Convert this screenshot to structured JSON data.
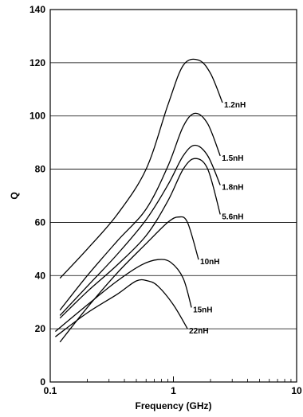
{
  "chart_data": {
    "type": "line",
    "title": "",
    "xlabel": "Frequency (GHz)",
    "ylabel": "Q",
    "x_scale": "log",
    "xlim": [
      0.1,
      10
    ],
    "ylim": [
      0,
      140
    ],
    "x_ticks": [
      {
        "value": 0.1,
        "label": "0.1"
      },
      {
        "value": 1,
        "label": "1"
      },
      {
        "value": 10,
        "label": "10"
      }
    ],
    "y_ticks": [
      {
        "value": 0,
        "label": "0"
      },
      {
        "value": 20,
        "label": "20"
      },
      {
        "value": 40,
        "label": "40"
      },
      {
        "value": 60,
        "label": "60"
      },
      {
        "value": 80,
        "label": "80"
      },
      {
        "value": 100,
        "label": "100"
      },
      {
        "value": 120,
        "label": "120"
      },
      {
        "value": 140,
        "label": "140"
      }
    ],
    "grid": "horizontal",
    "legend": "inline labels at line ends",
    "series": [
      {
        "name": "1.2nH",
        "x": [
          0.12,
          0.2,
          0.35,
          0.6,
          0.9,
          1.2,
          1.6,
          2.0,
          2.5
        ],
        "y": [
          39,
          50,
          63,
          80,
          104,
          119,
          121,
          116,
          105
        ]
      },
      {
        "name": "1.5nH",
        "x": [
          0.12,
          0.2,
          0.35,
          0.6,
          0.9,
          1.2,
          1.5,
          1.9,
          2.4
        ],
        "y": [
          27,
          40,
          53,
          65,
          81,
          96,
          101,
          97,
          85
        ]
      },
      {
        "name": "1.8nH",
        "x": [
          0.12,
          0.2,
          0.35,
          0.6,
          0.9,
          1.2,
          1.5,
          1.9,
          2.4
        ],
        "y": [
          25,
          36,
          48,
          61,
          74,
          85,
          89,
          85,
          74
        ]
      },
      {
        "name": "5.6nH",
        "x": [
          0.12,
          0.2,
          0.35,
          0.6,
          0.9,
          1.2,
          1.5,
          1.9,
          2.4
        ],
        "y": [
          24,
          34,
          44,
          55,
          68,
          80,
          84,
          80,
          63
        ]
      },
      {
        "name": "10nH",
        "x": [
          0.12,
          0.2,
          0.35,
          0.6,
          0.9,
          1.1,
          1.3,
          1.6
        ],
        "y": [
          15,
          28,
          41,
          52,
          60,
          62,
          60,
          46
        ]
      },
      {
        "name": "15nH",
        "x": [
          0.11,
          0.2,
          0.35,
          0.55,
          0.75,
          0.95,
          1.2,
          1.4
        ],
        "y": [
          19,
          29,
          38,
          44,
          46,
          45,
          39,
          28
        ]
      },
      {
        "name": "22nH",
        "x": [
          0.11,
          0.2,
          0.35,
          0.5,
          0.62,
          0.75,
          1.0,
          1.3
        ],
        "y": [
          17,
          26,
          33,
          38,
          38,
          36,
          29,
          20
        ]
      }
    ]
  }
}
